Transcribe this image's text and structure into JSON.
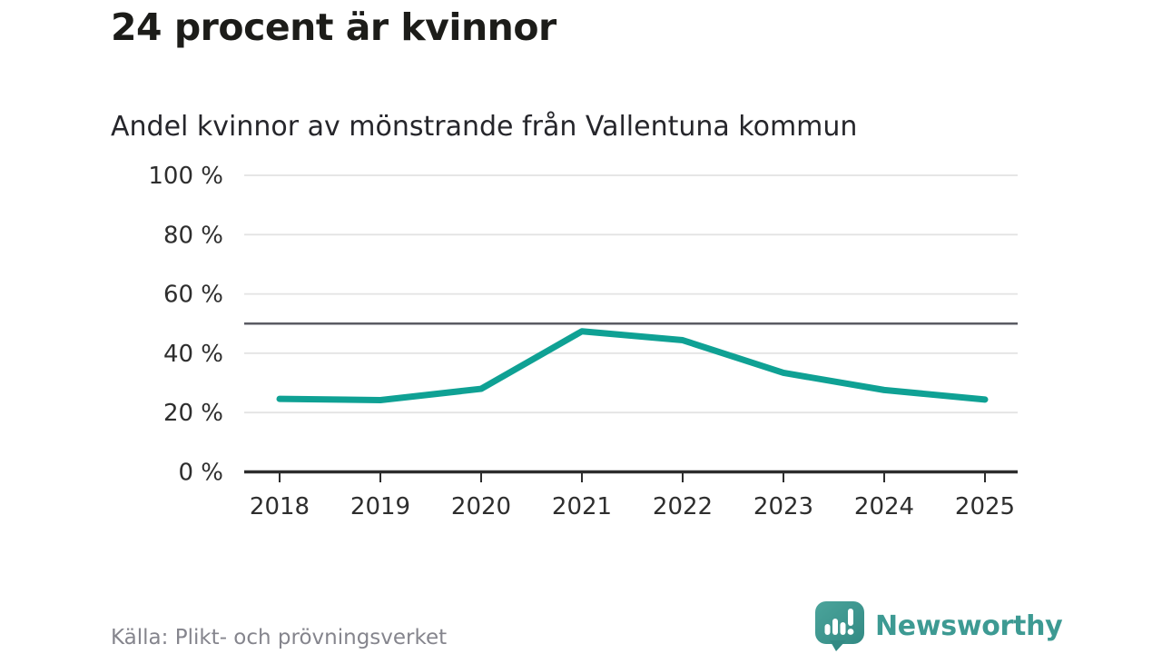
{
  "header": {
    "title": "24 procent är kvinnor",
    "subtitle": "Andel kvinnor av mönstrande från Vallentuna kommun"
  },
  "footer": {
    "source": "Källa: Plikt- och prövningsverket",
    "brand": "Newsworthy"
  },
  "colors": {
    "line": "#0fa194",
    "reference": "#5a5b63",
    "gridline": "#e3e3e3",
    "axis": "#2d2d2d",
    "brand_teal": "#3d9a93"
  },
  "chart_data": {
    "type": "line",
    "title": "Andel kvinnor av mönstrande från Vallentuna kommun",
    "x": [
      "2018",
      "2019",
      "2020",
      "2021",
      "2022",
      "2023",
      "2024",
      "2025"
    ],
    "series": [
      {
        "name": "Andel kvinnor av mönstrande",
        "values": [
          24.6,
          24.2,
          28,
          47.4,
          44.4,
          33.4,
          27.6,
          24.4
        ]
      }
    ],
    "ylim": [
      0,
      100
    ],
    "yticks": [
      {
        "value": 0,
        "label": "0 %"
      },
      {
        "value": 20,
        "label": "20 %"
      },
      {
        "value": 40,
        "label": "40 %"
      },
      {
        "value": 60,
        "label": "60 %"
      },
      {
        "value": 80,
        "label": "80 %"
      },
      {
        "value": 100,
        "label": "100 %"
      }
    ],
    "reference_line": 50,
    "grid": true,
    "legend": false
  }
}
